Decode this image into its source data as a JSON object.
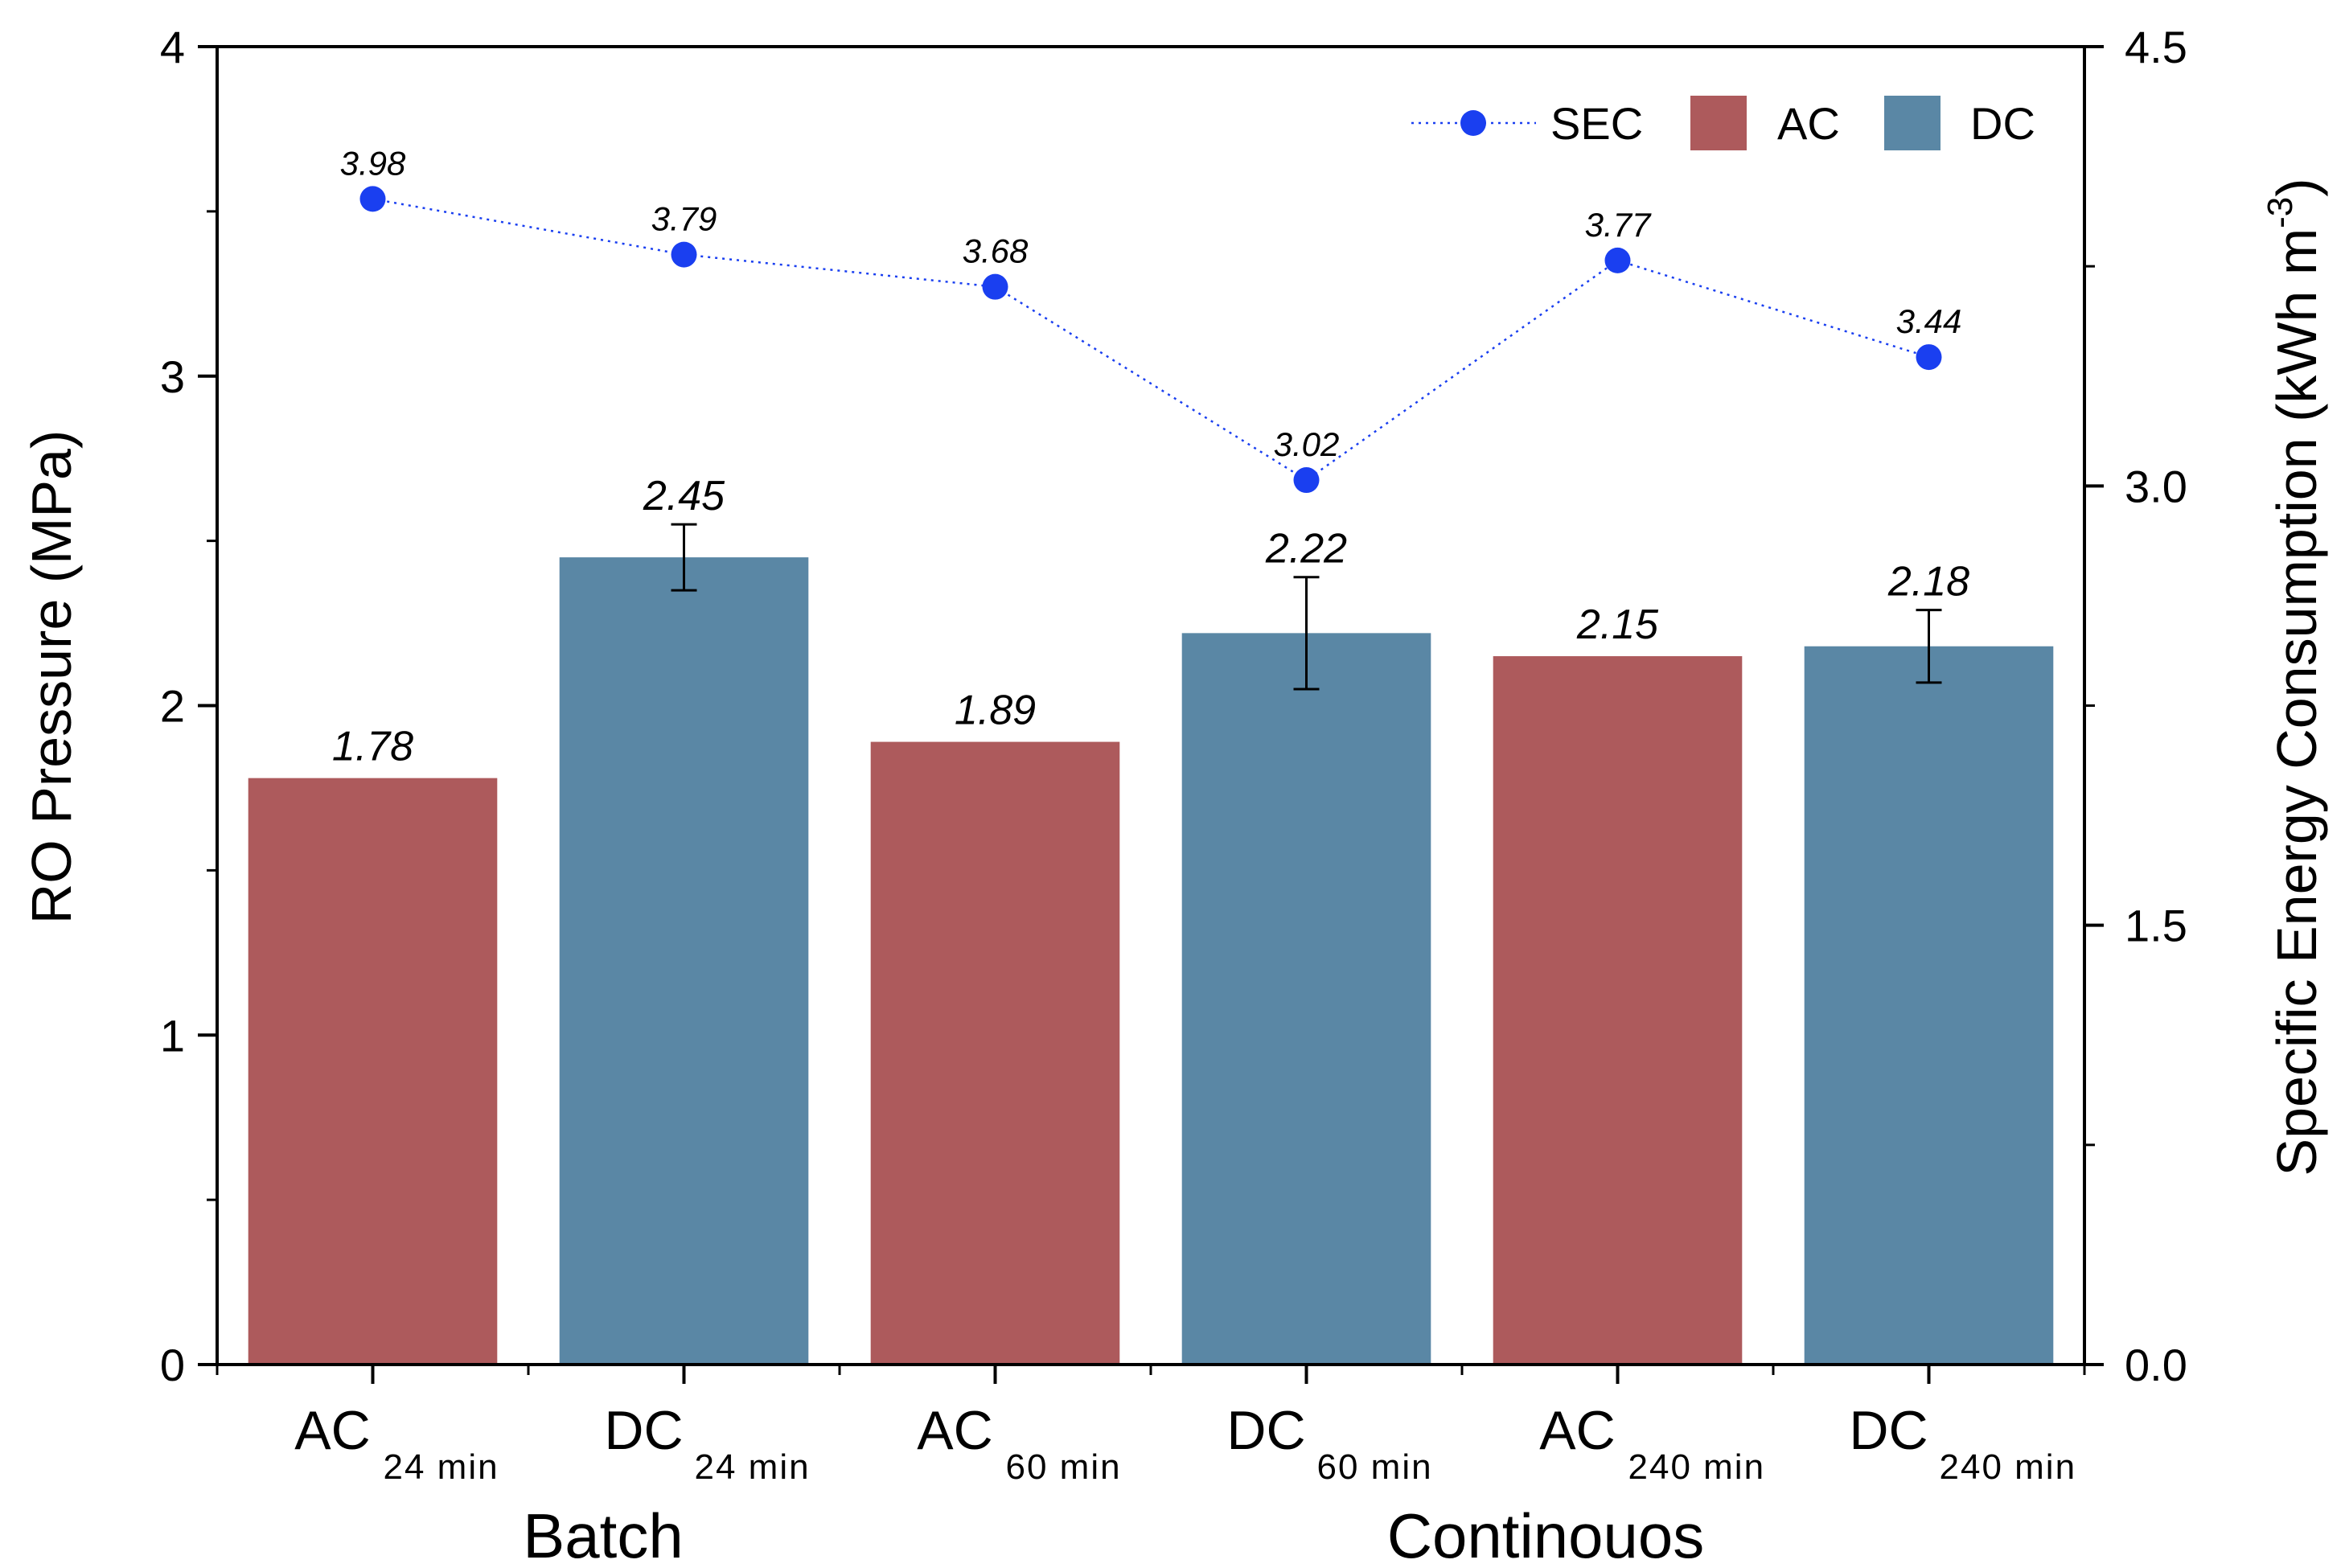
{
  "chart_data": {
    "type": "bar",
    "categories": [
      {
        "main": "AC",
        "sub": "24 min"
      },
      {
        "main": "DC",
        "sub": "24 min"
      },
      {
        "main": "AC",
        "sub": "60 min"
      },
      {
        "main": "DC",
        "sub": "60 min"
      },
      {
        "main": "AC",
        "sub": "240 min"
      },
      {
        "main": "DC",
        "sub": "240 min"
      }
    ],
    "groups": [
      {
        "label": "Batch",
        "categories": [
          0,
          1
        ]
      },
      {
        "label": "Continouos",
        "categories": [
          2,
          3,
          4,
          5
        ]
      }
    ],
    "series": [
      {
        "name": "AC",
        "type": "bar",
        "axis": "left",
        "color": "#ad5a5c",
        "points": [
          {
            "category": 0,
            "value": 1.78,
            "label": "1.78",
            "error": null
          },
          {
            "category": 2,
            "value": 1.89,
            "label": "1.89",
            "error": null
          },
          {
            "category": 4,
            "value": 2.15,
            "label": "2.15",
            "error": null
          }
        ]
      },
      {
        "name": "DC",
        "type": "bar",
        "axis": "left",
        "color": "#5a87a5",
        "points": [
          {
            "category": 1,
            "value": 2.45,
            "label": "2.45",
            "error": 0.1
          },
          {
            "category": 3,
            "value": 2.22,
            "label": "2.22",
            "error": 0.17
          },
          {
            "category": 5,
            "value": 2.18,
            "label": "2.18",
            "error": 0.11
          }
        ]
      },
      {
        "name": "SEC",
        "type": "line",
        "axis": "right",
        "color": "#1a3ff0",
        "line_style": "dotted",
        "marker": "circle",
        "points": [
          {
            "category": 0,
            "value": 3.98,
            "label": "3.98"
          },
          {
            "category": 1,
            "value": 3.79,
            "label": "3.79"
          },
          {
            "category": 2,
            "value": 3.68,
            "label": "3.68"
          },
          {
            "category": 3,
            "value": 3.02,
            "label": "3.02"
          },
          {
            "category": 4,
            "value": 3.77,
            "label": "3.77"
          },
          {
            "category": 5,
            "value": 3.44,
            "label": "3.44"
          }
        ]
      }
    ],
    "ylabel": "RO Pressure (MPa)",
    "ylim": [
      0,
      4
    ],
    "yticks": [
      "0",
      "1",
      "2",
      "3",
      "4"
    ],
    "y2label": {
      "main": "Specific Energy Consumption (kWh m",
      "sup": "-3",
      "close": ")"
    },
    "y2lim": [
      0,
      4.5
    ],
    "y2ticks": [
      "0.0",
      "1.5",
      "3.0",
      "4.5"
    ],
    "legend": {
      "position": "top-right",
      "order": [
        "SEC",
        "AC",
        "DC"
      ]
    },
    "grid": false
  }
}
